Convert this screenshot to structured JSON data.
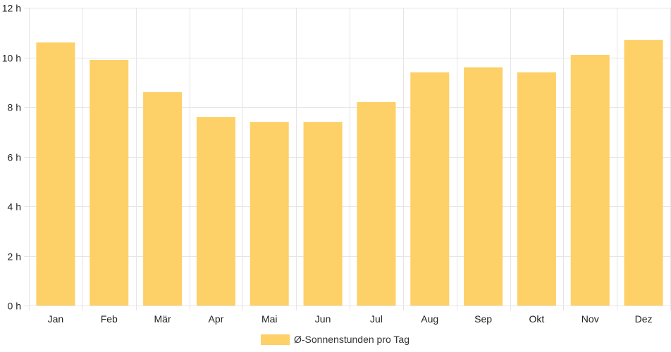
{
  "chart_data": {
    "type": "bar",
    "categories": [
      "Jan",
      "Feb",
      "Mär",
      "Apr",
      "Mai",
      "Jun",
      "Jul",
      "Aug",
      "Sep",
      "Okt",
      "Nov",
      "Dez"
    ],
    "series": [
      {
        "name": "Ø-Sonnenstunden pro Tag",
        "values": [
          10.6,
          9.9,
          8.6,
          7.6,
          7.4,
          7.4,
          8.2,
          9.4,
          9.6,
          9.4,
          10.1,
          10.7
        ],
        "color": "#fdd068"
      }
    ],
    "ylim": [
      0,
      12
    ],
    "yticks": [
      0,
      2,
      4,
      6,
      8,
      10,
      12
    ],
    "y_tick_suffix": " h",
    "grid": true,
    "legend": "bottom-center"
  }
}
